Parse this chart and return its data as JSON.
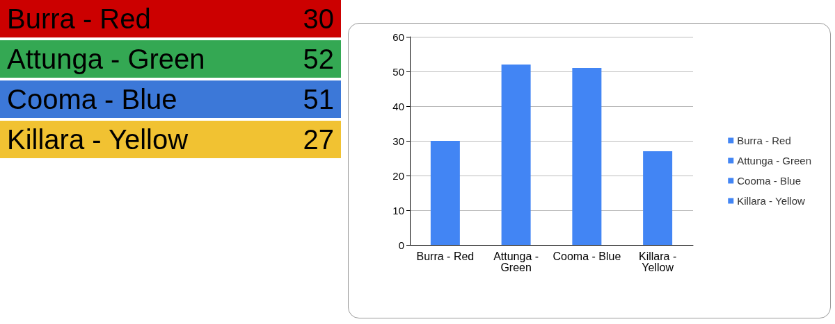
{
  "chart_data": [
    {
      "type": "other",
      "categories": [
        "Burra - Red",
        "Attunga - Green",
        "Cooma - Blue",
        "Killara - Yellow"
      ],
      "values": [
        30,
        52,
        51,
        27
      ],
      "colors": [
        "#cc0000",
        "#34a853",
        "#3c78d8",
        "#f1c232"
      ],
      "data_labels": true
    },
    {
      "type": "bar",
      "stacked": true,
      "categories": [
        "Burra - Red",
        "Attunga - Green",
        "Cooma - Blue",
        "Killara - Yellow"
      ],
      "series": [
        {
          "name": "Burra - Red",
          "color": "#4285f4",
          "values": [
            30,
            null,
            null,
            null
          ]
        },
        {
          "name": "Attunga - Green",
          "color": "#4285f4",
          "values": [
            null,
            52,
            null,
            null
          ]
        },
        {
          "name": "Cooma - Blue",
          "color": "#4285f4",
          "values": [
            null,
            null,
            51,
            null
          ]
        },
        {
          "name": "Killara - Yellow",
          "color": "#4285f4",
          "values": [
            null,
            null,
            null,
            27
          ]
        }
      ],
      "ylim": [
        0,
        60
      ],
      "yticks": [
        0,
        10,
        20,
        30,
        40,
        50,
        60
      ],
      "grid": "y",
      "legend": "right"
    }
  ]
}
